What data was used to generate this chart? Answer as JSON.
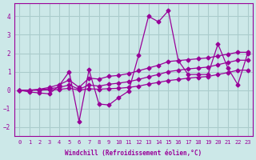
{
  "xlabel": "Windchill (Refroidissement éolien,°C)",
  "bg_color": "#cce8e8",
  "grid_color": "#aacccc",
  "line_color": "#990099",
  "xlim": [
    -0.5,
    23.5
  ],
  "ylim": [
    -2.5,
    4.7
  ],
  "yticks": [
    -2,
    -1,
    0,
    1,
    2,
    3,
    4
  ],
  "xticks": [
    0,
    1,
    2,
    3,
    4,
    5,
    6,
    7,
    8,
    9,
    10,
    11,
    12,
    13,
    14,
    15,
    16,
    17,
    18,
    19,
    20,
    21,
    22,
    23
  ],
  "series_x": [
    0,
    1,
    2,
    3,
    4,
    5,
    6,
    7,
    8,
    9,
    10,
    11,
    12,
    13,
    14,
    15,
    16,
    17,
    18,
    19,
    20,
    21,
    22,
    23
  ],
  "series": [
    [
      0.0,
      -0.1,
      -0.15,
      -0.2,
      0.25,
      1.0,
      -1.7,
      1.1,
      -0.75,
      -0.8,
      -0.4,
      -0.05,
      1.9,
      4.0,
      3.7,
      4.3,
      1.6,
      0.85,
      0.85,
      0.85,
      2.5,
      1.2,
      0.3,
      2.0
    ],
    [
      0.0,
      0.0,
      0.05,
      0.15,
      0.3,
      0.55,
      0.15,
      0.65,
      0.6,
      0.75,
      0.8,
      0.9,
      1.05,
      1.2,
      1.35,
      1.55,
      1.6,
      1.65,
      1.7,
      1.75,
      1.85,
      1.95,
      2.05,
      2.05
    ],
    [
      0.0,
      0.0,
      0.02,
      0.08,
      0.15,
      0.28,
      0.05,
      0.28,
      0.22,
      0.32,
      0.38,
      0.46,
      0.58,
      0.72,
      0.85,
      1.0,
      1.08,
      1.15,
      1.2,
      1.25,
      1.38,
      1.5,
      1.62,
      1.62
    ],
    [
      0.0,
      0.0,
      0.0,
      0.02,
      0.04,
      0.1,
      0.01,
      0.07,
      0.05,
      0.08,
      0.1,
      0.15,
      0.22,
      0.33,
      0.42,
      0.52,
      0.58,
      0.65,
      0.7,
      0.74,
      0.85,
      0.95,
      1.08,
      1.08
    ]
  ]
}
